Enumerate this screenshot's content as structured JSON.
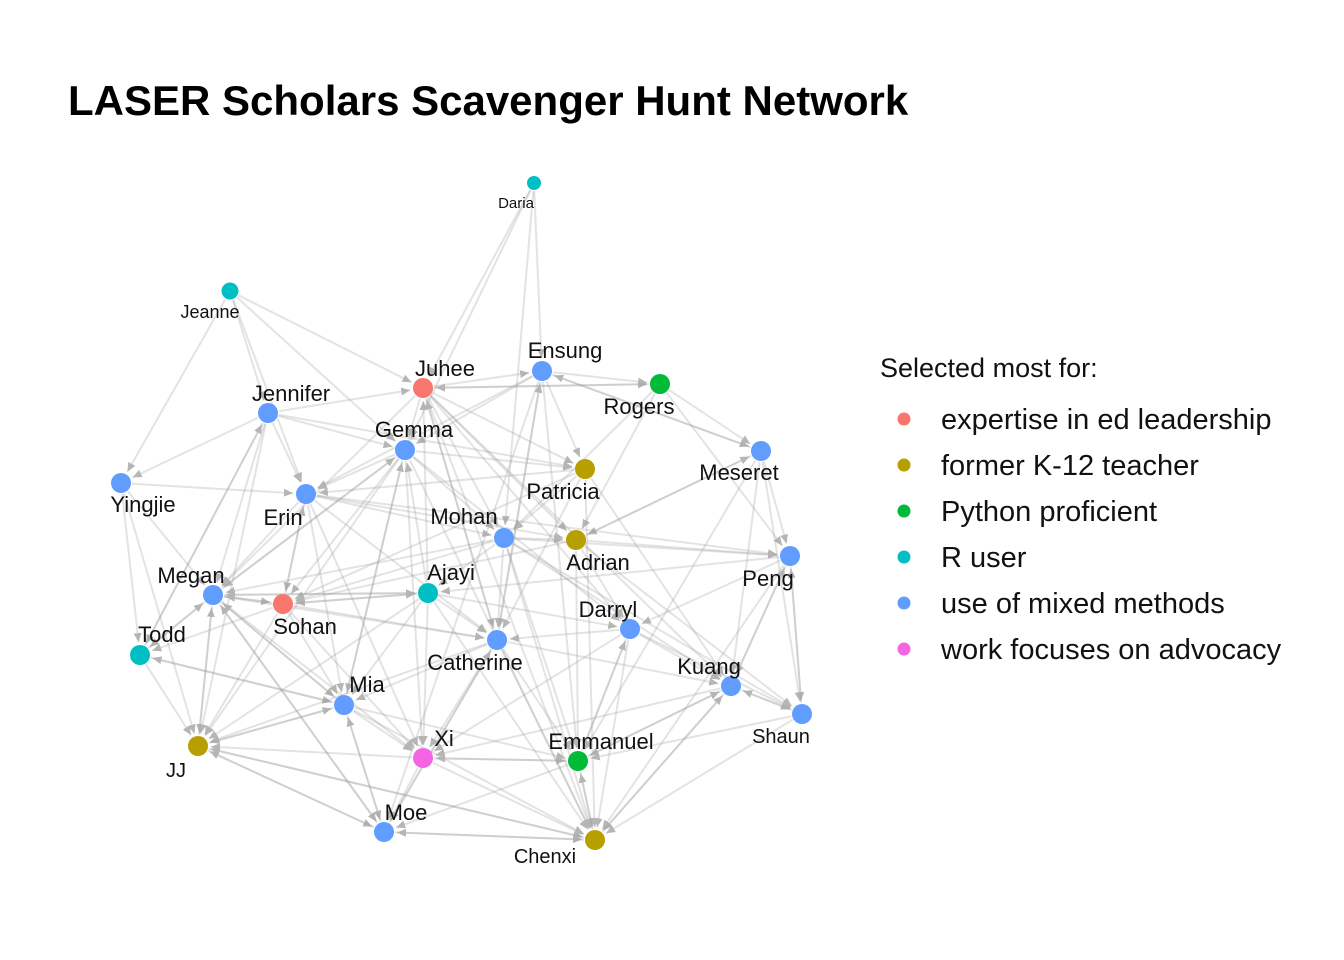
{
  "title": "LASER Scholars Scavenger Hunt Network",
  "legend": {
    "title": "Selected most for:",
    "items": [
      {
        "key": "leadership",
        "label": "expertise in ed leadership",
        "color": "#F8766D"
      },
      {
        "key": "k12",
        "label": "former K-12 teacher",
        "color": "#B79F00"
      },
      {
        "key": "python",
        "label": "Python proficient",
        "color": "#00BA38"
      },
      {
        "key": "r",
        "label": "R user",
        "color": "#00BFC4"
      },
      {
        "key": "mixed",
        "label": "use of mixed methods",
        "color": "#619CFF"
      },
      {
        "key": "advocacy",
        "label": "work focuses on advocacy",
        "color": "#F564E3"
      }
    ]
  },
  "nodes": [
    {
      "id": "Daria",
      "category": "r"
    },
    {
      "id": "Jeanne",
      "category": "r"
    },
    {
      "id": "Juhee",
      "category": "leadership"
    },
    {
      "id": "Ensung",
      "category": "mixed"
    },
    {
      "id": "Rogers",
      "category": "python"
    },
    {
      "id": "Jennifer",
      "category": "mixed"
    },
    {
      "id": "Gemma",
      "category": "mixed"
    },
    {
      "id": "Meseret",
      "category": "mixed"
    },
    {
      "id": "Patricia",
      "category": "k12"
    },
    {
      "id": "Yingjie",
      "category": "mixed"
    },
    {
      "id": "Erin",
      "category": "mixed"
    },
    {
      "id": "Mohan",
      "category": "mixed"
    },
    {
      "id": "Adrian",
      "category": "k12"
    },
    {
      "id": "Peng",
      "category": "mixed"
    },
    {
      "id": "Megan",
      "category": "mixed"
    },
    {
      "id": "Ajayi",
      "category": "r"
    },
    {
      "id": "Sohan",
      "category": "leadership"
    },
    {
      "id": "Darryl",
      "category": "mixed"
    },
    {
      "id": "Todd",
      "category": "r"
    },
    {
      "id": "Catherine",
      "category": "mixed"
    },
    {
      "id": "Kuang",
      "category": "mixed"
    },
    {
      "id": "Mia",
      "category": "mixed"
    },
    {
      "id": "Shaun",
      "category": "mixed"
    },
    {
      "id": "Xi",
      "category": "advocacy"
    },
    {
      "id": "Emmanuel",
      "category": "python"
    },
    {
      "id": "JJ",
      "category": "k12"
    },
    {
      "id": "Moe",
      "category": "mixed"
    },
    {
      "id": "Chenxi",
      "category": "k12"
    }
  ],
  "edges": [
    [
      "Daria",
      "Juhee"
    ],
    [
      "Daria",
      "Ensung"
    ],
    [
      "Daria",
      "Gemma"
    ],
    [
      "Daria",
      "Mohan"
    ],
    [
      "Jeanne",
      "Juhee"
    ],
    [
      "Jeanne",
      "Jennifer"
    ],
    [
      "Jeanne",
      "Yingjie"
    ],
    [
      "Jeanne",
      "Erin"
    ],
    [
      "Jeanne",
      "Gemma"
    ],
    [
      "Juhee",
      "Ensung"
    ],
    [
      "Juhee",
      "Rogers"
    ],
    [
      "Juhee",
      "Patricia"
    ],
    [
      "Juhee",
      "Mohan"
    ],
    [
      "Juhee",
      "Adrian"
    ],
    [
      "Juhee",
      "Catherine"
    ],
    [
      "Juhee",
      "Darryl"
    ],
    [
      "Juhee",
      "Gemma"
    ],
    [
      "Juhee",
      "Megan"
    ],
    [
      "Juhee",
      "Kuang"
    ],
    [
      "Juhee",
      "Chenxi"
    ],
    [
      "Ensung",
      "Rogers"
    ],
    [
      "Ensung",
      "Gemma"
    ],
    [
      "Ensung",
      "Patricia"
    ],
    [
      "Ensung",
      "Catherine"
    ],
    [
      "Ensung",
      "Emmanuel"
    ],
    [
      "Ensung",
      "Moe"
    ],
    [
      "Ensung",
      "Meseret"
    ],
    [
      "Ensung",
      "Erin"
    ],
    [
      "Rogers",
      "Meseret"
    ],
    [
      "Rogers",
      "Peng"
    ],
    [
      "Rogers",
      "Adrian"
    ],
    [
      "Rogers",
      "Mohan"
    ],
    [
      "Rogers",
      "Juhee"
    ],
    [
      "Jennifer",
      "Juhee"
    ],
    [
      "Jennifer",
      "Gemma"
    ],
    [
      "Jennifer",
      "Yingjie"
    ],
    [
      "Jennifer",
      "Erin"
    ],
    [
      "Jennifer",
      "Megan"
    ],
    [
      "Jennifer",
      "JJ"
    ],
    [
      "Jennifer",
      "Todd"
    ],
    [
      "Jennifer",
      "Patricia"
    ],
    [
      "Gemma",
      "Patricia"
    ],
    [
      "Gemma",
      "Mohan"
    ],
    [
      "Gemma",
      "Erin"
    ],
    [
      "Gemma",
      "Megan"
    ],
    [
      "Gemma",
      "Sohan"
    ],
    [
      "Gemma",
      "Mia"
    ],
    [
      "Gemma",
      "Chenxi"
    ],
    [
      "Gemma",
      "Darryl"
    ],
    [
      "Gemma",
      "Xi"
    ],
    [
      "Gemma",
      "JJ"
    ],
    [
      "Meseret",
      "Peng"
    ],
    [
      "Meseret",
      "Shaun"
    ],
    [
      "Meseret",
      "Kuang"
    ],
    [
      "Meseret",
      "Emmanuel"
    ],
    [
      "Meseret",
      "Ensung"
    ],
    [
      "Meseret",
      "Adrian"
    ],
    [
      "Patricia",
      "Erin"
    ],
    [
      "Patricia",
      "Mohan"
    ],
    [
      "Patricia",
      "Chenxi"
    ],
    [
      "Patricia",
      "Catherine"
    ],
    [
      "Patricia",
      "Kuang"
    ],
    [
      "Patricia",
      "Sohan"
    ],
    [
      "Yingjie",
      "Todd"
    ],
    [
      "Yingjie",
      "Megan"
    ],
    [
      "Yingjie",
      "JJ"
    ],
    [
      "Yingjie",
      "Erin"
    ],
    [
      "Erin",
      "Mohan"
    ],
    [
      "Erin",
      "Megan"
    ],
    [
      "Erin",
      "Sohan"
    ],
    [
      "Erin",
      "Mia"
    ],
    [
      "Erin",
      "Peng"
    ],
    [
      "Erin",
      "Catherine"
    ],
    [
      "Erin",
      "Adrian"
    ],
    [
      "Erin",
      "Xi"
    ],
    [
      "Mohan",
      "Adrian"
    ],
    [
      "Mohan",
      "Ajayi"
    ],
    [
      "Mohan",
      "Catherine"
    ],
    [
      "Mohan",
      "Sohan"
    ],
    [
      "Mohan",
      "Peng"
    ],
    [
      "Mohan",
      "Megan"
    ],
    [
      "Mohan",
      "Emmanuel"
    ],
    [
      "Mohan",
      "Shaun"
    ],
    [
      "Mohan",
      "Chenxi"
    ],
    [
      "Mohan",
      "Kuang"
    ],
    [
      "Adrian",
      "Peng"
    ],
    [
      "Adrian",
      "Darryl"
    ],
    [
      "Adrian",
      "Emmanuel"
    ],
    [
      "Adrian",
      "Shaun"
    ],
    [
      "Adrian",
      "Sohan"
    ],
    [
      "Adrian",
      "Meseret"
    ],
    [
      "Peng",
      "Shaun"
    ],
    [
      "Peng",
      "Kuang"
    ],
    [
      "Peng",
      "Darryl"
    ],
    [
      "Peng",
      "Chenxi"
    ],
    [
      "Peng",
      "Ajayi"
    ],
    [
      "Megan",
      "Sohan"
    ],
    [
      "Megan",
      "Todd"
    ],
    [
      "Megan",
      "JJ"
    ],
    [
      "Megan",
      "Mia"
    ],
    [
      "Megan",
      "Ajayi"
    ],
    [
      "Megan",
      "Moe"
    ],
    [
      "Megan",
      "Catherine"
    ],
    [
      "Megan",
      "Xi"
    ],
    [
      "Megan",
      "Gemma"
    ],
    [
      "Ajayi",
      "Sohan"
    ],
    [
      "Ajayi",
      "Catherine"
    ],
    [
      "Ajayi",
      "Mia"
    ],
    [
      "Ajayi",
      "Darryl"
    ],
    [
      "Ajayi",
      "Xi"
    ],
    [
      "Ajayi",
      "Juhee"
    ],
    [
      "Ajayi",
      "Chenxi"
    ],
    [
      "Ajayi",
      "Gemma"
    ],
    [
      "Ajayi",
      "Megan"
    ],
    [
      "Ajayi",
      "JJ"
    ],
    [
      "Sohan",
      "Mia"
    ],
    [
      "Sohan",
      "Todd"
    ],
    [
      "Sohan",
      "Catherine"
    ],
    [
      "Sohan",
      "Xi"
    ],
    [
      "Sohan",
      "JJ"
    ],
    [
      "Sohan",
      "Megan"
    ],
    [
      "Sohan",
      "Ajayi"
    ],
    [
      "Sohan",
      "Erin"
    ],
    [
      "Darryl",
      "Kuang"
    ],
    [
      "Darryl",
      "Catherine"
    ],
    [
      "Darryl",
      "Emmanuel"
    ],
    [
      "Darryl",
      "Chenxi"
    ],
    [
      "Darryl",
      "Shaun"
    ],
    [
      "Darryl",
      "Xi"
    ],
    [
      "Todd",
      "JJ"
    ],
    [
      "Todd",
      "Mia"
    ],
    [
      "Todd",
      "Megan"
    ],
    [
      "Todd",
      "Jennifer"
    ],
    [
      "Catherine",
      "Xi"
    ],
    [
      "Catherine",
      "Mia"
    ],
    [
      "Catherine",
      "Emmanuel"
    ],
    [
      "Catherine",
      "Chenxi"
    ],
    [
      "Catherine",
      "Moe"
    ],
    [
      "Catherine",
      "Kuang"
    ],
    [
      "Catherine",
      "Juhee"
    ],
    [
      "Catherine",
      "Ensung"
    ],
    [
      "Catherine",
      "JJ"
    ],
    [
      "Kuang",
      "Shaun"
    ],
    [
      "Kuang",
      "Emmanuel"
    ],
    [
      "Kuang",
      "Chenxi"
    ],
    [
      "Kuang",
      "Xi"
    ],
    [
      "Kuang",
      "Peng"
    ],
    [
      "Mia",
      "Xi"
    ],
    [
      "Mia",
      "Moe"
    ],
    [
      "Mia",
      "JJ"
    ],
    [
      "Mia",
      "Chenxi"
    ],
    [
      "Mia",
      "Emmanuel"
    ],
    [
      "Mia",
      "Gemma"
    ],
    [
      "Mia",
      "Megan"
    ],
    [
      "Mia",
      "Todd"
    ],
    [
      "Shaun",
      "Chenxi"
    ],
    [
      "Shaun",
      "Emmanuel"
    ],
    [
      "Shaun",
      "Kuang"
    ],
    [
      "Shaun",
      "Peng"
    ],
    [
      "Xi",
      "Moe"
    ],
    [
      "Xi",
      "Chenxi"
    ],
    [
      "Xi",
      "Emmanuel"
    ],
    [
      "Xi",
      "JJ"
    ],
    [
      "Emmanuel",
      "Chenxi"
    ],
    [
      "Emmanuel",
      "Moe"
    ],
    [
      "Emmanuel",
      "Xi"
    ],
    [
      "Emmanuel",
      "Kuang"
    ],
    [
      "Emmanuel",
      "Darryl"
    ],
    [
      "JJ",
      "Moe"
    ],
    [
      "JJ",
      "Mia"
    ],
    [
      "JJ",
      "Chenxi"
    ],
    [
      "JJ",
      "Megan"
    ],
    [
      "Moe",
      "Chenxi"
    ],
    [
      "Moe",
      "JJ"
    ],
    [
      "Moe",
      "Mia"
    ],
    [
      "Moe",
      "Megan"
    ],
    [
      "Moe",
      "Catherine"
    ],
    [
      "Chenxi",
      "Moe"
    ],
    [
      "Chenxi",
      "JJ"
    ],
    [
      "Chenxi",
      "Kuang"
    ],
    [
      "Chenxi",
      "Emmanuel"
    ]
  ]
}
